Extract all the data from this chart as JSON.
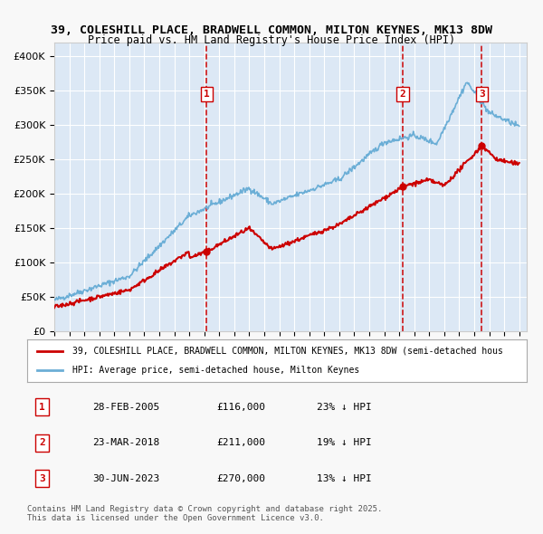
{
  "title_line1": "39, COLESHILL PLACE, BRADWELL COMMON, MILTON KEYNES, MK13 8DW",
  "title_line2": "Price paid vs. HM Land Registry's House Price Index (HPI)",
  "ylabel": "",
  "background_color": "#f0f4fa",
  "plot_bg_color": "#dce8f5",
  "grid_color": "#ffffff",
  "hpi_color": "#6baed6",
  "price_color": "#cc0000",
  "annotation_color": "#cc0000",
  "dashed_line_color": "#cc0000",
  "sale_markers": [
    {
      "date_num": 2005.16,
      "price": 116000,
      "label": "1"
    },
    {
      "date_num": 2018.23,
      "price": 211000,
      "label": "2"
    },
    {
      "date_num": 2023.5,
      "price": 270000,
      "label": "3"
    }
  ],
  "table_rows": [
    {
      "num": "1",
      "date": "28-FEB-2005",
      "price": "£116,000",
      "pct": "23% ↓ HPI"
    },
    {
      "num": "2",
      "date": "23-MAR-2018",
      "price": "£211,000",
      "pct": "19% ↓ HPI"
    },
    {
      "num": "3",
      "date": "30-JUN-2023",
      "price": "£270,000",
      "pct": "13% ↓ HPI"
    }
  ],
  "legend_line1": "39, COLESHILL PLACE, BRADWELL COMMON, MILTON KEYNES, MK13 8DW (semi-detached hous",
  "legend_line2": "HPI: Average price, semi-detached house, Milton Keynes",
  "footer": "Contains HM Land Registry data © Crown copyright and database right 2025.\nThis data is licensed under the Open Government Licence v3.0.",
  "ylim": [
    0,
    420000
  ],
  "xlim_start": 1995.0,
  "xlim_end": 2026.5
}
